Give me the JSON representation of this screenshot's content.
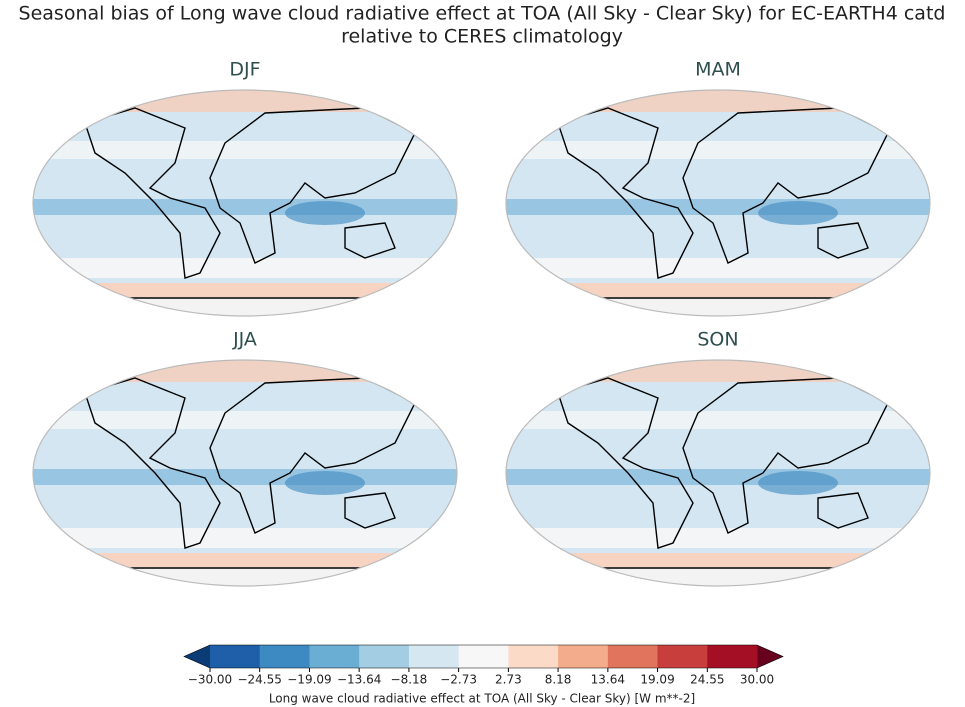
{
  "figure": {
    "title": [
      "Seasonal bias of Long wave cloud radiative effect at TOA (All Sky - Clear Sky) for EC-EARTH4 catd",
      "relative to CERES climatology"
    ],
    "panels": [
      "DJF",
      "MAM",
      "JJA",
      "SON"
    ],
    "colorbar": {
      "label": "Long wave cloud radiative effect at TOA (All Sky - Clear Sky) [W m**-2]",
      "ticks": [
        {
          "value": -30,
          "label": "−30.00"
        },
        {
          "value": -24.55,
          "label": "−24.55"
        },
        {
          "value": -19.09,
          "label": "−19.09"
        },
        {
          "value": -13.64,
          "label": "−13.64"
        },
        {
          "value": -8.18,
          "label": "−8.18"
        },
        {
          "value": -2.73,
          "label": "−2.73"
        },
        {
          "value": 2.73,
          "label": "2.73"
        },
        {
          "value": 8.18,
          "label": "8.18"
        },
        {
          "value": 13.64,
          "label": "13.64"
        },
        {
          "value": 19.09,
          "label": "19.09"
        },
        {
          "value": 24.55,
          "label": "24.55"
        },
        {
          "value": 30,
          "label": "30.00"
        }
      ],
      "colors": [
        "#0b3c75",
        "#1f5ea8",
        "#3d89c2",
        "#6aaed4",
        "#a3cde3",
        "#d5e7f1",
        "#f7f7f7",
        "#fbdac8",
        "#f4ad8c",
        "#e0745c",
        "#c73e3d",
        "#a50f26",
        "#67001f"
      ]
    }
  }
}
